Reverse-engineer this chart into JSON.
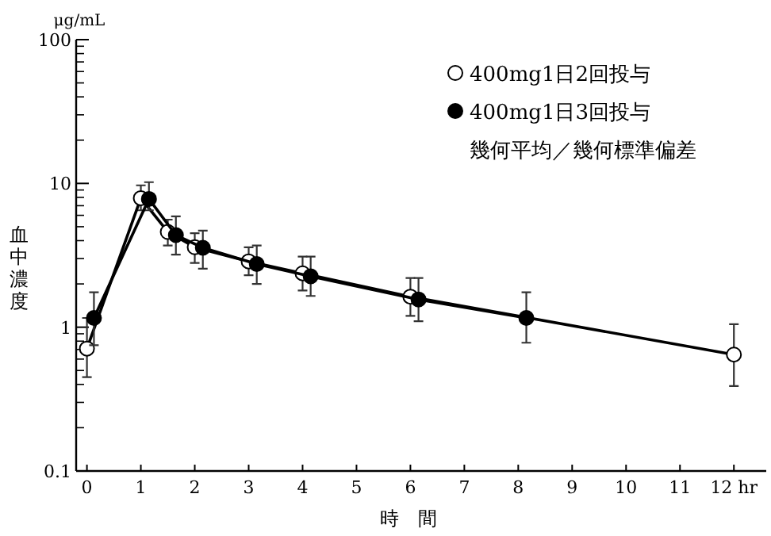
{
  "chart_data": {
    "type": "line",
    "xlabel": "時　間",
    "ylabel": "血中濃度",
    "annotations": [
      "μg/mL",
      "幾何平均／幾何標準偏差"
    ],
    "xlim": [
      -0.2,
      12.6
    ],
    "ylim": [
      0.1,
      100
    ],
    "log": "y",
    "marker": "circle",
    "line_style": "solid",
    "legend": "top right",
    "grid": false,
    "xticks": [
      0,
      1,
      2,
      3,
      4,
      5,
      6,
      7,
      8,
      9,
      10,
      11,
      {
        "value": 12,
        "label": "12 hr"
      }
    ],
    "yticks": [
      {
        "value": 0.1,
        "label": "0.1"
      },
      1,
      10,
      100
    ],
    "series": [
      {
        "name": "400mg1日2回投与",
        "color": "#ffffff",
        "x": [
          0,
          1,
          1.5,
          2,
          3,
          4,
          6,
          12
        ],
        "values": [
          0.71,
          7.9,
          4.6,
          3.6,
          2.87,
          2.37,
          1.63,
          0.645
        ],
        "errors": [
          [
            0.45,
            1.16
          ],
          [
            6.5,
            9.7
          ],
          [
            3.7,
            5.6
          ],
          [
            2.8,
            4.5
          ],
          [
            2.3,
            3.6
          ],
          [
            1.8,
            3.1
          ],
          [
            1.2,
            2.2
          ],
          [
            0.39,
            1.05
          ]
        ]
      },
      {
        "name": "400mg1日3回投与",
        "color": "#000000",
        "x": [
          0.13,
          1.15,
          1.65,
          2.15,
          3.15,
          4.15,
          6.15,
          8.15
        ],
        "values": [
          1.16,
          7.8,
          4.37,
          3.57,
          2.75,
          2.26,
          1.56,
          1.16
        ],
        "errors": [
          [
            0.75,
            1.75
          ],
          [
            6.5,
            10.2
          ],
          [
            3.2,
            5.9
          ],
          [
            2.55,
            4.7
          ],
          [
            2.0,
            3.7
          ],
          [
            1.65,
            3.1
          ],
          [
            1.1,
            2.2
          ],
          [
            0.78,
            1.75
          ]
        ]
      }
    ]
  }
}
